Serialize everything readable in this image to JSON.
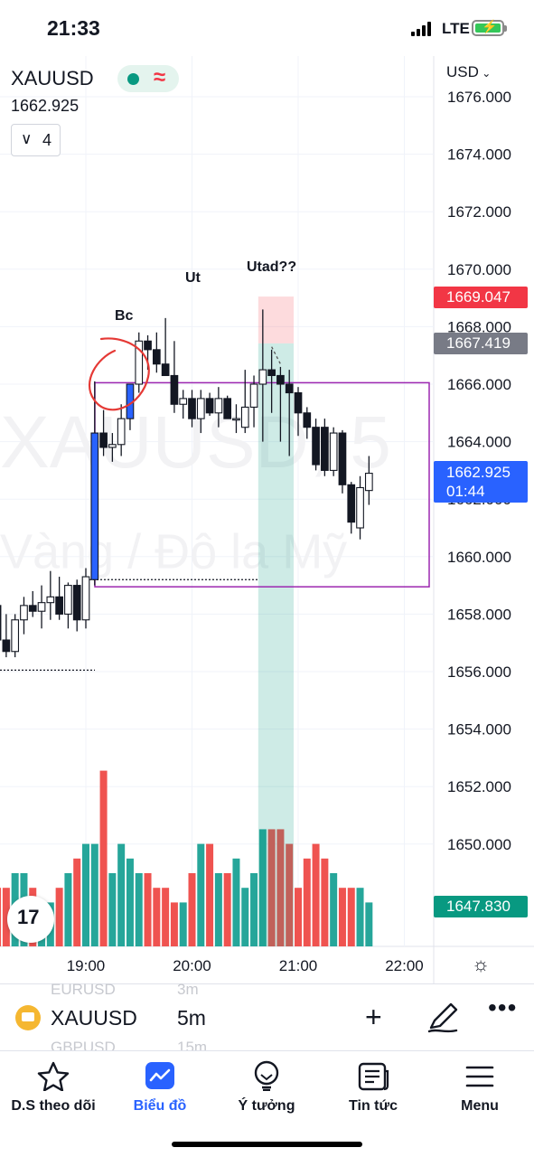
{
  "status_bar": {
    "time": "21:33",
    "network": "LTE"
  },
  "header": {
    "symbol": "XAUUSD",
    "price": "1662.925",
    "indicators_count": "4",
    "currency": "USD"
  },
  "watermark": {
    "line1": "XAUUSD, 5",
    "line2": "Vàng / Đô la Mỹ"
  },
  "annotations": {
    "bc": "Bc",
    "ut": "Ut",
    "utad": "Utad??"
  },
  "price_axis": {
    "ticks": [
      "1676.000",
      "1674.000",
      "1672.000",
      "1670.000",
      "1668.000",
      "1666.000",
      "1664.000",
      "1662.000",
      "1660.000",
      "1658.000",
      "1656.000",
      "1654.000",
      "1652.000",
      "1650.000"
    ],
    "stop_tag": "1669.047",
    "entry_tag": "1667.419",
    "last_price": "1662.925",
    "countdown": "01:44",
    "target_tag": "1647.830"
  },
  "time_axis": {
    "ticks": [
      "19:00",
      "20:00",
      "21:00",
      "22:00"
    ]
  },
  "colors": {
    "up": "#089981",
    "down": "#f23645",
    "accent": "#2962ff",
    "box": "#9c27b0"
  },
  "chart_data": {
    "type": "candlestick",
    "symbol": "XAUUSD",
    "interval": "5m",
    "ylim": [
      1647,
      1676.5
    ],
    "x_ticks": [
      "19:00",
      "20:00",
      "21:00",
      "22:00"
    ],
    "candles": [
      {
        "o": 1657.6,
        "h": 1658.2,
        "l": 1657.0,
        "c": 1658.0
      },
      {
        "o": 1658.0,
        "h": 1658.4,
        "l": 1657.2,
        "c": 1657.5
      },
      {
        "o": 1657.5,
        "h": 1658.0,
        "l": 1657.0,
        "c": 1657.9
      },
      {
        "o": 1657.9,
        "h": 1658.3,
        "l": 1657.0,
        "c": 1657.3
      },
      {
        "o": 1657.3,
        "h": 1658.5,
        "l": 1657.1,
        "c": 1658.3
      },
      {
        "o": 1658.3,
        "h": 1658.6,
        "l": 1656.8,
        "c": 1657.1
      },
      {
        "o": 1657.1,
        "h": 1658.0,
        "l": 1656.5,
        "c": 1656.7
      },
      {
        "o": 1656.7,
        "h": 1658.0,
        "l": 1656.5,
        "c": 1657.8
      },
      {
        "o": 1657.8,
        "h": 1658.6,
        "l": 1657.3,
        "c": 1658.3
      },
      {
        "o": 1658.3,
        "h": 1658.8,
        "l": 1657.9,
        "c": 1658.1
      },
      {
        "o": 1658.1,
        "h": 1659.0,
        "l": 1657.5,
        "c": 1658.4
      },
      {
        "o": 1658.4,
        "h": 1659.5,
        "l": 1657.8,
        "c": 1658.6
      },
      {
        "o": 1658.6,
        "h": 1659.3,
        "l": 1657.8,
        "c": 1658.0
      },
      {
        "o": 1658.0,
        "h": 1659.1,
        "l": 1657.5,
        "c": 1659.0
      },
      {
        "o": 1659.0,
        "h": 1659.2,
        "l": 1657.4,
        "c": 1657.8
      },
      {
        "o": 1657.8,
        "h": 1659.6,
        "l": 1657.5,
        "c": 1659.3
      },
      {
        "o": 1659.2,
        "h": 1666.1,
        "l": 1659.0,
        "c": 1664.3
      },
      {
        "o": 1664.3,
        "h": 1665.1,
        "l": 1663.5,
        "c": 1663.8
      },
      {
        "o": 1663.8,
        "h": 1664.3,
        "l": 1663.3,
        "c": 1663.9
      },
      {
        "o": 1663.9,
        "h": 1665.3,
        "l": 1663.5,
        "c": 1664.8
      },
      {
        "o": 1664.8,
        "h": 1666.0,
        "l": 1664.4,
        "c": 1666.0
      },
      {
        "o": 1666.0,
        "h": 1667.8,
        "l": 1665.7,
        "c": 1667.5
      },
      {
        "o": 1667.5,
        "h": 1667.7,
        "l": 1666.5,
        "c": 1667.2
      },
      {
        "o": 1667.2,
        "h": 1667.8,
        "l": 1666.4,
        "c": 1666.7
      },
      {
        "o": 1666.7,
        "h": 1668.3,
        "l": 1666.3,
        "c": 1666.3
      },
      {
        "o": 1666.3,
        "h": 1667.5,
        "l": 1665.0,
        "c": 1665.3
      },
      {
        "o": 1665.3,
        "h": 1665.8,
        "l": 1664.8,
        "c": 1665.5
      },
      {
        "o": 1665.5,
        "h": 1665.8,
        "l": 1664.5,
        "c": 1664.8
      },
      {
        "o": 1664.8,
        "h": 1665.8,
        "l": 1664.3,
        "c": 1665.5
      },
      {
        "o": 1665.5,
        "h": 1665.7,
        "l": 1664.9,
        "c": 1665.0
      },
      {
        "o": 1665.0,
        "h": 1665.9,
        "l": 1664.5,
        "c": 1665.5
      },
      {
        "o": 1665.5,
        "h": 1665.6,
        "l": 1664.8,
        "c": 1664.8
      },
      {
        "o": 1664.8,
        "h": 1665.3,
        "l": 1664.3,
        "c": 1664.8
      },
      {
        "o": 1664.5,
        "h": 1666.5,
        "l": 1664.3,
        "c": 1665.2
      },
      {
        "o": 1665.2,
        "h": 1666.3,
        "l": 1664.5,
        "c": 1666.0
      },
      {
        "o": 1666.0,
        "h": 1668.6,
        "l": 1664.0,
        "c": 1666.5
      },
      {
        "o": 1666.5,
        "h": 1667.2,
        "l": 1665.0,
        "c": 1666.3
      },
      {
        "o": 1666.3,
        "h": 1666.6,
        "l": 1664.0,
        "c": 1666.0
      },
      {
        "o": 1666.0,
        "h": 1666.5,
        "l": 1663.5,
        "c": 1665.7
      },
      {
        "o": 1665.7,
        "h": 1665.9,
        "l": 1664.2,
        "c": 1665.0
      },
      {
        "o": 1665.0,
        "h": 1665.2,
        "l": 1664.1,
        "c": 1664.5
      },
      {
        "o": 1664.5,
        "h": 1664.8,
        "l": 1663.0,
        "c": 1663.2
      },
      {
        "o": 1664.5,
        "h": 1664.8,
        "l": 1662.8,
        "c": 1663.0
      },
      {
        "o": 1663.0,
        "h": 1664.5,
        "l": 1662.8,
        "c": 1664.3
      },
      {
        "o": 1664.3,
        "h": 1664.4,
        "l": 1662.2,
        "c": 1662.5
      },
      {
        "o": 1662.5,
        "h": 1662.6,
        "l": 1660.8,
        "c": 1661.2
      },
      {
        "o": 1661.0,
        "h": 1662.8,
        "l": 1660.6,
        "c": 1662.4
      },
      {
        "o": 1662.3,
        "h": 1663.5,
        "l": 1661.8,
        "c": 1662.9
      }
    ],
    "volume": [
      4,
      3,
      4,
      3,
      3,
      4,
      4,
      5,
      5,
      4,
      3,
      3,
      4,
      5,
      6,
      7,
      7,
      12,
      5,
      7,
      6,
      5,
      5,
      4,
      4,
      3,
      3,
      5,
      7,
      7,
      5,
      5,
      6,
      4,
      5,
      8,
      8,
      8,
      7,
      4,
      6,
      7,
      6,
      5,
      4,
      4,
      4,
      3
    ]
  },
  "symbol_bar": {
    "symbol": "XAUUSD",
    "timeframe": "5m",
    "ghost_prev_symbol": "EURUSD",
    "ghost_prev_tf": "3m",
    "ghost_next_symbol": "GBPUSD",
    "ghost_next_tf": "15m"
  },
  "tabs": [
    {
      "label": "D.S theo dõi"
    },
    {
      "label": "Biểu đồ"
    },
    {
      "label": "Ý tưởng"
    },
    {
      "label": "Tin tức"
    },
    {
      "label": "Menu"
    }
  ]
}
